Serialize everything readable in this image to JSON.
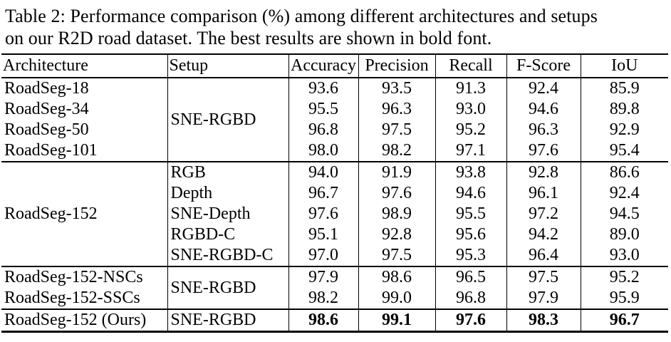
{
  "caption": {
    "line1": "Table 2: Performance comparison (%) among different architectures and setups",
    "line2": "on our R2D road dataset. The best results are shown in bold font."
  },
  "table": {
    "columns": [
      "Architecture",
      "Setup",
      "Accuracy",
      "Precision",
      "Recall",
      "F-Score",
      "IoU"
    ],
    "rows": [
      {
        "architecture": "RoadSeg-18",
        "setup": "SNE-RGBD",
        "accuracy": "93.6",
        "precision": "93.5",
        "recall": "91.3",
        "fscore": "92.4",
        "iou": "85.9"
      },
      {
        "architecture": "RoadSeg-34",
        "accuracy": "95.5",
        "precision": "96.3",
        "recall": "93.0",
        "fscore": "94.6",
        "iou": "89.8"
      },
      {
        "architecture": "RoadSeg-50",
        "accuracy": "96.8",
        "precision": "97.5",
        "recall": "95.2",
        "fscore": "96.3",
        "iou": "92.9"
      },
      {
        "architecture": "RoadSeg-101",
        "accuracy": "98.0",
        "precision": "98.2",
        "recall": "97.1",
        "fscore": "97.6",
        "iou": "95.4"
      },
      {
        "architecture": "RoadSeg-152",
        "setup": "RGB",
        "accuracy": "94.0",
        "precision": "91.9",
        "recall": "93.8",
        "fscore": "92.8",
        "iou": "86.6"
      },
      {
        "setup": "Depth",
        "accuracy": "96.7",
        "precision": "97.6",
        "recall": "94.6",
        "fscore": "96.1",
        "iou": "92.4"
      },
      {
        "setup": "SNE-Depth",
        "accuracy": "97.6",
        "precision": "98.9",
        "recall": "95.5",
        "fscore": "97.2",
        "iou": "94.5"
      },
      {
        "setup": "RGBD-C",
        "accuracy": "95.1",
        "precision": "92.8",
        "recall": "95.6",
        "fscore": "94.2",
        "iou": "89.0"
      },
      {
        "setup": "SNE-RGBD-C",
        "accuracy": "97.0",
        "precision": "97.5",
        "recall": "95.3",
        "fscore": "96.4",
        "iou": "93.0"
      },
      {
        "architecture": "RoadSeg-152-NSCs",
        "setup": "SNE-RGBD",
        "accuracy": "97.9",
        "precision": "98.6",
        "recall": "96.5",
        "fscore": "97.5",
        "iou": "95.2"
      },
      {
        "architecture": "RoadSeg-152-SSCs",
        "accuracy": "98.2",
        "precision": "99.0",
        "recall": "96.8",
        "fscore": "97.9",
        "iou": "95.9"
      },
      {
        "architecture": "RoadSeg-152 (Ours)",
        "setup": "SNE-RGBD",
        "accuracy": "98.6",
        "precision": "99.1",
        "recall": "97.6",
        "fscore": "98.3",
        "iou": "96.7",
        "bold": true
      }
    ]
  }
}
